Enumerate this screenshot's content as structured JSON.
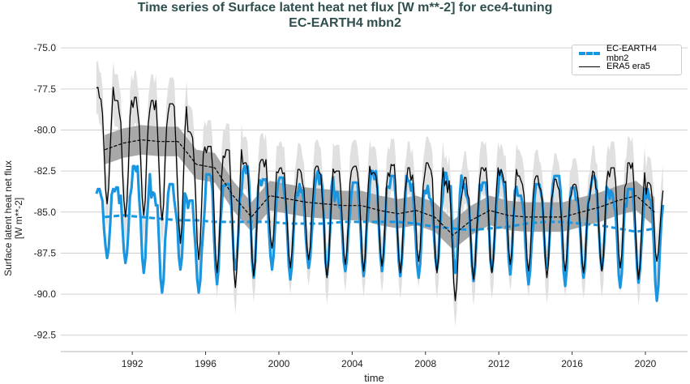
{
  "chart_data": {
    "type": "line",
    "title": "Time series of Surface latent heat net flux [W m**-2] for ece4-tuning",
    "subtitle": "EC-EARTH4 mbn2",
    "xlabel": "time",
    "ylabel": "Surface latent heat net flux [W m**-2]",
    "ylim": [
      -93.5,
      -74.3
    ],
    "xlim": [
      1988.1,
      2022.3
    ],
    "yticks": [
      "-75.0",
      "-77.5",
      "-80.0",
      "-82.5",
      "-85.0",
      "-87.5",
      "-90.0",
      "-92.5"
    ],
    "ytick_values": [
      -75,
      -77.5,
      -80,
      -82.5,
      -85,
      -87.5,
      -90,
      -92.5
    ],
    "xticks": [
      "1992",
      "1996",
      "2000",
      "2004",
      "2008",
      "2012",
      "2016",
      "2020"
    ],
    "xtick_values": [
      1992,
      1996,
      2000,
      2004,
      2008,
      2012,
      2016,
      2020
    ],
    "grid": "horizontal",
    "legend_placement": "top-right",
    "years": [
      1990,
      1991,
      1992,
      1993,
      1994,
      1995,
      1996,
      1997,
      1998,
      1999,
      2000,
      2001,
      2002,
      2003,
      2004,
      2005,
      2006,
      2007,
      2008,
      2009,
      2010,
      2011,
      2012,
      2013,
      2014,
      2015,
      2016,
      2017,
      2018,
      2019,
      2020
    ],
    "series": [
      {
        "name": "EC-EARTH4 mbn2",
        "color": "#1a96e0",
        "style": "thick solid",
        "annual_max": [
          -83.6,
          -83.5,
          -82.2,
          -83.8,
          -83.3,
          -84.3,
          -82.7,
          -83.3,
          -82.2,
          -83.0,
          -82.9,
          -83.3,
          -82.5,
          -83.8,
          -83.2,
          -82.5,
          -82.8,
          -83.1,
          -83.4,
          -82.6,
          -83.3,
          -83.2,
          -82.5,
          -84.0,
          -83.3,
          -82.8,
          -83.5,
          -82.8,
          -83.7,
          -83.6,
          -83.6
        ],
        "annual_min": [
          -87.8,
          -88.1,
          -88.7,
          -89.9,
          -88.5,
          -89.9,
          -89.4,
          -88.5,
          -89.0,
          -88.5,
          -89.1,
          -88.4,
          -88.8,
          -88.6,
          -88.9,
          -88.6,
          -88.9,
          -89.0,
          -88.5,
          -88.7,
          -89.2,
          -88.6,
          -88.8,
          -89.4,
          -88.4,
          -89.5,
          -89.0,
          -88.5,
          -89.6,
          -89.3,
          -90.4
        ],
        "running_mean": [
          -85.3,
          -85.2,
          -85.3,
          -85.4,
          -85.5,
          -85.5,
          -85.6,
          -85.6,
          -85.6,
          -85.6,
          -85.7,
          -85.7,
          -85.7,
          -85.6,
          -85.6,
          -85.6,
          -85.6,
          -85.7,
          -85.9,
          -86.0,
          -86.1,
          -86.0,
          -85.9,
          -85.7,
          -85.6,
          -85.6,
          -85.7,
          -85.8,
          -86.0,
          -86.2,
          -86.0
        ]
      },
      {
        "name": "ERA5 era5",
        "color": "#000000",
        "style": "thin solid",
        "annual_max": [
          -77.4,
          -78.2,
          -78.0,
          -78.2,
          -78.4,
          -80.1,
          -81.0,
          -81.2,
          -82.0,
          -81.8,
          -82.3,
          -82.4,
          -82.2,
          -82.5,
          -82.2,
          -82.6,
          -82.1,
          -82.3,
          -82.0,
          -83.1,
          -82.9,
          -82.3,
          -82.4,
          -82.8,
          -82.8,
          -83.0,
          -83.3,
          -82.5,
          -82.3,
          -82.0,
          -83.2
        ],
        "annual_min": [
          -84.5,
          -85.3,
          -85.2,
          -85.5,
          -86.9,
          -87.9,
          -88.7,
          -89.6,
          -88.9,
          -87.2,
          -88.4,
          -87.9,
          -89.0,
          -88.2,
          -88.6,
          -88.3,
          -88.7,
          -88.0,
          -88.7,
          -90.4,
          -89.1,
          -88.7,
          -88.2,
          -88.6,
          -89.0,
          -88.6,
          -88.7,
          -88.6,
          -88.4,
          -89.1,
          -88.0
        ],
        "running_mean": [
          -81.2,
          -80.8,
          -80.6,
          -80.7,
          -80.7,
          -82.1,
          -82.3,
          -84.0,
          -85.3,
          -84.0,
          -84.2,
          -84.4,
          -84.5,
          -84.6,
          -84.6,
          -84.9,
          -85.1,
          -84.9,
          -85.3,
          -86.4,
          -85.5,
          -84.9,
          -85.2,
          -85.3,
          -85.3,
          -85.3,
          -85.0,
          -84.7,
          -84.3,
          -84.0,
          -85.0
        ]
      }
    ]
  }
}
